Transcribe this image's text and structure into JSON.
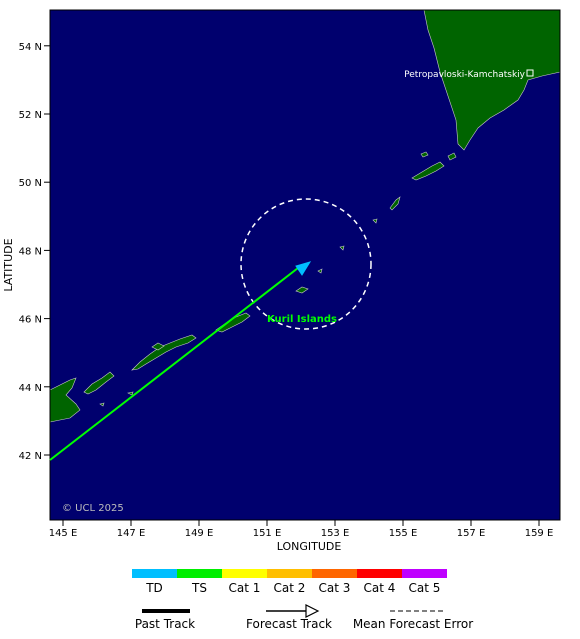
{
  "map": {
    "xlabel": "LONGITUDE",
    "ylabel": "LATITUDE",
    "copyright": "© UCL 2025",
    "lon_ticks": [
      "145 E",
      "147 E",
      "149 E",
      "151 E",
      "153 E",
      "155 E",
      "157 E",
      "159 E"
    ],
    "lat_ticks": [
      "42 N",
      "44 N",
      "46 N",
      "48 N",
      "50 N",
      "52 N",
      "54 N"
    ],
    "colors": {
      "ocean": "#00006e",
      "land": "#006400",
      "track": "#00ff00",
      "arrow": "#00bfff"
    },
    "place_label": "Petropavloski-Kamchatskiy",
    "region_label": "Kuril Islands"
  },
  "legend": {
    "categories": [
      {
        "label": "TD",
        "color": "#00bfff"
      },
      {
        "label": "TS",
        "color": "#00ee00"
      },
      {
        "label": "Cat 1",
        "color": "#ffff00"
      },
      {
        "label": "Cat 2",
        "color": "#ffbf00"
      },
      {
        "label": "Cat 3",
        "color": "#ff6600"
      },
      {
        "label": "Cat 4",
        "color": "#ff0000"
      },
      {
        "label": "Cat 5",
        "color": "#bf00ff"
      }
    ],
    "past_track": "Past Track",
    "forecast_track": "Forecast Track",
    "mean_error": "Mean Forecast Error"
  }
}
